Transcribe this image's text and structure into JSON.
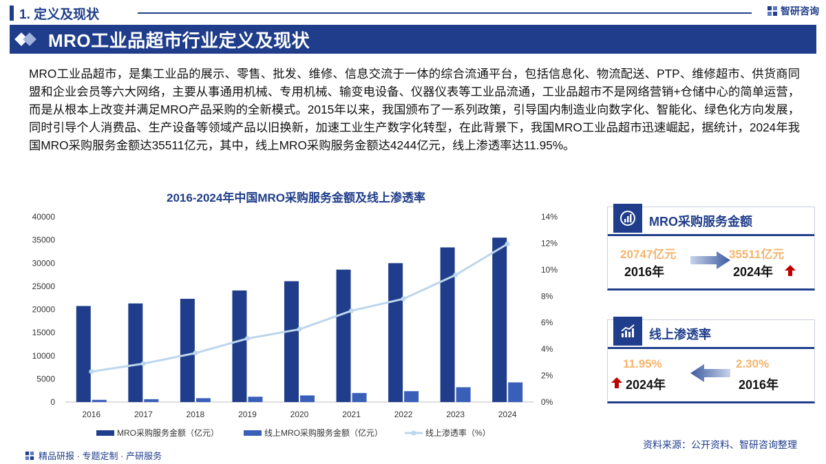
{
  "header": {
    "section_label": "1. 定义及现状",
    "brand_name": "智研咨询",
    "banner_title": "MRO工业品超市行业定义及现状"
  },
  "paragraph": "MRO工业品超市，是集工业品的展示、零售、批发、维修、信息交流于一体的综合流通平台，包括信息化、物流配送、PTP、维修超市、供货商同盟和企业会员等六大网络，主要从事通用机械、专用机械、输变电设备、仪器仪表等工业品流通，工业品超市不是网络营销+仓储中心的简单运营，而是从根本上改变并满足MRO产品采购的全新模式。2015年以来，我国颁布了一系列政策，引导国内制造业向数字化、智能化、绿色化方向发展，同时引导个人消费品、生产设备等领域产品以旧换新，加速工业生产数字化转型，在此背景下，我国MRO工业品超市迅速崛起，据统计，2024年我国MRO采购服务金额达35511亿元，其中，线上MRO采购服务金额达4244亿元，线上渗透率达11.95%。",
  "chart_data": {
    "type": "bar",
    "title": "2016-2024年中国MRO采购服务金额及线上渗透率",
    "categories": [
      "2016",
      "2017",
      "2018",
      "2019",
      "2020",
      "2021",
      "2022",
      "2023",
      "2024"
    ],
    "series": [
      {
        "name": "MRO采购服务金额（亿元）",
        "type": "bar",
        "axis": "left",
        "color": "#1f3d8a",
        "values": [
          20747,
          21300,
          22300,
          24100,
          26100,
          28600,
          30000,
          33400,
          35511
        ]
      },
      {
        "name": "线上MRO采购服务金额（亿元）",
        "type": "bar",
        "axis": "left",
        "color": "#3a5fb8",
        "values": [
          477,
          620,
          830,
          1150,
          1430,
          1960,
          2350,
          3200,
          4244
        ]
      },
      {
        "name": "线上渗透率（%）",
        "type": "line",
        "axis": "right",
        "color": "#bcd6ec",
        "values": [
          2.3,
          2.9,
          3.7,
          4.8,
          5.5,
          6.9,
          7.8,
          9.6,
          11.95
        ]
      }
    ],
    "left_axis": {
      "ylim": [
        0,
        40000
      ],
      "ticks": [
        "0",
        "5000",
        "10000",
        "15000",
        "20000",
        "25000",
        "30000",
        "35000",
        "40000"
      ]
    },
    "right_axis": {
      "ylim": [
        0,
        14
      ],
      "ticks": [
        "0%",
        "2%",
        "4%",
        "6%",
        "8%",
        "10%",
        "12%",
        "14%"
      ]
    },
    "grid": false,
    "legend": "bottom"
  },
  "card_amount": {
    "title": "MRO采购服务金额",
    "start_value": "20747亿元",
    "start_year": "2016年",
    "end_value": "35511亿元",
    "end_year": "2024年"
  },
  "card_penetration": {
    "title": "线上渗透率",
    "end_value": "11.95%",
    "end_year": "2024年",
    "start_value": "2.30%",
    "start_year": "2016年"
  },
  "footer": {
    "left_text": "精品研报 · 专题定制 · 产研服务",
    "source": "资料来源：公开资料、智研咨询整理"
  },
  "colors": {
    "brand": "#1f3d8a",
    "accent_value": "#f5b46c",
    "arrow_up": "#c00000"
  }
}
